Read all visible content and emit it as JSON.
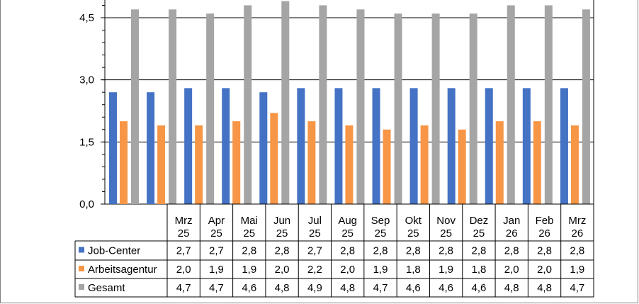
{
  "chart_data": {
    "type": "bar",
    "categories": [
      "Mrz 25",
      "Apr 25",
      "Mai 25",
      "Jun 25",
      "Jul 25",
      "Aug 25",
      "Sep 25",
      "Okt 25",
      "Nov 25",
      "Dez 25",
      "Jan 26",
      "Feb 26",
      "Mrz 26"
    ],
    "category_lines": [
      [
        "Mrz",
        "25"
      ],
      [
        "Apr",
        "25"
      ],
      [
        "Mai",
        "25"
      ],
      [
        "Jun",
        "25"
      ],
      [
        "Jul",
        "25"
      ],
      [
        "Aug",
        "25"
      ],
      [
        "Sep",
        "25"
      ],
      [
        "Okt",
        "25"
      ],
      [
        "Nov",
        "25"
      ],
      [
        "Dez",
        "25"
      ],
      [
        "Jan",
        "26"
      ],
      [
        "Feb",
        "26"
      ],
      [
        "Mrz",
        "26"
      ]
    ],
    "series": [
      {
        "name": "Job-Center",
        "color": "#4472C4",
        "values": [
          2.7,
          2.7,
          2.8,
          2.8,
          2.7,
          2.8,
          2.8,
          2.8,
          2.8,
          2.8,
          2.8,
          2.8,
          2.8
        ],
        "labels": [
          "2,7",
          "2,7",
          "2,8",
          "2,8",
          "2,7",
          "2,8",
          "2,8",
          "2,8",
          "2,8",
          "2,8",
          "2,8",
          "2,8",
          "2,8"
        ]
      },
      {
        "name": "Arbeitsagentur",
        "color": "#F79646",
        "values": [
          2.0,
          1.9,
          1.9,
          2.0,
          2.2,
          2.0,
          1.9,
          1.8,
          1.9,
          1.8,
          2.0,
          2.0,
          1.9
        ],
        "labels": [
          "2,0",
          "1,9",
          "1,9",
          "2,0",
          "2,2",
          "2,0",
          "1,9",
          "1,8",
          "1,9",
          "1,8",
          "2,0",
          "2,0",
          "1,9"
        ]
      },
      {
        "name": "Gesamt",
        "color": "#A5A5A5",
        "values": [
          4.7,
          4.7,
          4.6,
          4.8,
          4.9,
          4.8,
          4.7,
          4.6,
          4.6,
          4.6,
          4.8,
          4.8,
          4.7
        ],
        "labels": [
          "4,7",
          "4,7",
          "4,6",
          "4,8",
          "4,9",
          "4,8",
          "4,7",
          "4,6",
          "4,6",
          "4,6",
          "4,8",
          "4,8",
          "4,7"
        ]
      }
    ],
    "yticks": [
      0,
      1.5,
      3.0,
      4.5
    ],
    "ytick_labels": [
      "0,0",
      "1,5",
      "3,0",
      "4,5"
    ],
    "ylim": [
      0,
      5.2
    ],
    "grid": true,
    "legend": "data-table"
  }
}
